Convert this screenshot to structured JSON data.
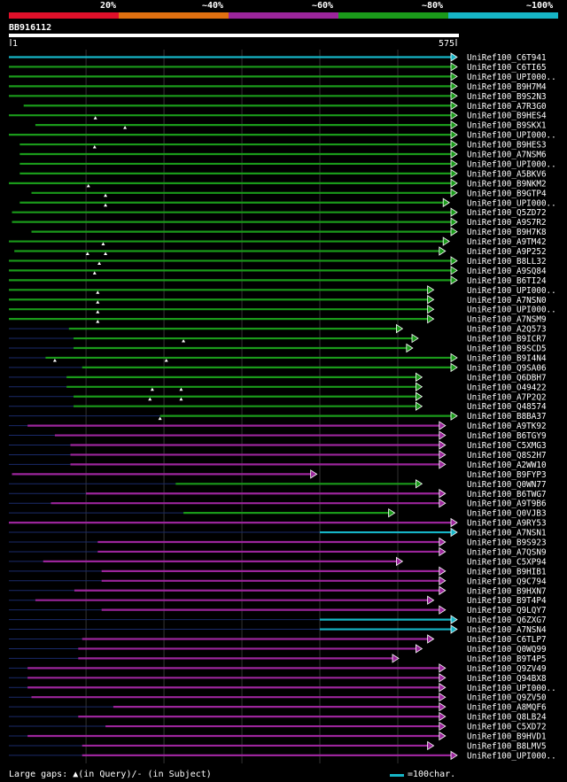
{
  "legend": {
    "colors": [
      "#e0102a",
      "#e07010",
      "#9b259b",
      "#1a9a1a",
      "#16b5c6"
    ],
    "labels": [
      "20%",
      "~40%",
      "~60%",
      "~80%",
      "~100%"
    ]
  },
  "chart_data": {
    "type": "alignment-overview",
    "query_id": "BB916112",
    "query_length": 575,
    "ruler_start": "1",
    "ruler_end": "575",
    "hits": [
      {
        "id": "UniRef100_C6T941",
        "start": 1,
        "end": 575,
        "color": "#16b5c6",
        "gaps": [],
        "prefix": 0
      },
      {
        "id": "UniRef100_C6TI65",
        "start": 1,
        "end": 575,
        "color": "#1a9a1a",
        "gaps": [],
        "prefix": 0
      },
      {
        "id": "UniRef100_UPI000..",
        "start": 1,
        "end": 575,
        "color": "#1a9a1a",
        "gaps": [],
        "prefix": 0
      },
      {
        "id": "UniRef100_B9H7M4",
        "start": 1,
        "end": 575,
        "color": "#1a9a1a",
        "gaps": [],
        "prefix": 0
      },
      {
        "id": "UniRef100_B9S2N3",
        "start": 1,
        "end": 575,
        "color": "#1a9a1a",
        "gaps": [],
        "prefix": 0
      },
      {
        "id": "UniRef100_A7R3G0",
        "start": 20,
        "end": 575,
        "color": "#1a9a1a",
        "gaps": [],
        "prefix": 0
      },
      {
        "id": "UniRef100_B9HES4",
        "start": 1,
        "end": 575,
        "color": "#1a9a1a",
        "gaps": [
          112
        ],
        "prefix": 0
      },
      {
        "id": "UniRef100_B9SKX1",
        "start": 35,
        "end": 575,
        "color": "#1a9a1a",
        "gaps": [
          150
        ],
        "prefix": 0
      },
      {
        "id": "UniRef100_UPI000..",
        "start": 1,
        "end": 575,
        "color": "#1a9a1a",
        "gaps": [],
        "prefix": 0
      },
      {
        "id": "UniRef100_B9HES3",
        "start": 15,
        "end": 575,
        "color": "#1a9a1a",
        "gaps": [
          111
        ],
        "prefix": 0
      },
      {
        "id": "UniRef100_A7NSM6",
        "start": 15,
        "end": 575,
        "color": "#1a9a1a",
        "gaps": [],
        "prefix": 0
      },
      {
        "id": "UniRef100_UPI000..",
        "start": 15,
        "end": 575,
        "color": "#1a9a1a",
        "gaps": [],
        "prefix": 0
      },
      {
        "id": "UniRef100_A5BKV6",
        "start": 15,
        "end": 575,
        "color": "#1a9a1a",
        "gaps": [],
        "prefix": 0
      },
      {
        "id": "UniRef100_B9NKM2",
        "start": 1,
        "end": 575,
        "color": "#1a9a1a",
        "gaps": [
          103
        ],
        "prefix": 0
      },
      {
        "id": "UniRef100_B9GTP4",
        "start": 30,
        "end": 575,
        "color": "#1a9a1a",
        "gaps": [
          125
        ],
        "prefix": 0
      },
      {
        "id": "UniRef100_UPI000..",
        "start": 15,
        "end": 565,
        "color": "#1a9a1a",
        "gaps": [
          125
        ],
        "prefix": 0
      },
      {
        "id": "UniRef100_Q5ZD72",
        "start": 5,
        "end": 575,
        "color": "#1a9a1a",
        "gaps": [],
        "prefix": 0
      },
      {
        "id": "UniRef100_A9S7R2",
        "start": 5,
        "end": 575,
        "color": "#1a9a1a",
        "gaps": [],
        "prefix": 0
      },
      {
        "id": "UniRef100_B9H7K8",
        "start": 30,
        "end": 575,
        "color": "#1a9a1a",
        "gaps": [],
        "prefix": 0
      },
      {
        "id": "UniRef100_A9TM42",
        "start": 1,
        "end": 565,
        "color": "#1a9a1a",
        "gaps": [
          122
        ],
        "prefix": 0
      },
      {
        "id": "UniRef100_A9P252",
        "start": 8,
        "end": 560,
        "color": "#1a9a1a",
        "gaps": [
          102,
          125
        ],
        "prefix": 0
      },
      {
        "id": "UniRef100_B8LL32",
        "start": 1,
        "end": 575,
        "color": "#1a9a1a",
        "gaps": [
          117
        ],
        "prefix": 0
      },
      {
        "id": "UniRef100_A9SQ84",
        "start": 1,
        "end": 575,
        "color": "#1a9a1a",
        "gaps": [
          111
        ],
        "prefix": 0
      },
      {
        "id": "UniRef100_B6TI24",
        "start": 1,
        "end": 575,
        "color": "#1a9a1a",
        "gaps": [],
        "prefix": 0
      },
      {
        "id": "UniRef100_UPI000..",
        "start": 1,
        "end": 545,
        "color": "#1a9a1a",
        "gaps": [
          115
        ],
        "prefix": 0
      },
      {
        "id": "UniRef100_A7NSN0",
        "start": 1,
        "end": 545,
        "color": "#1a9a1a",
        "gaps": [
          115
        ],
        "prefix": 0
      },
      {
        "id": "UniRef100_UPI000..",
        "start": 1,
        "end": 545,
        "color": "#1a9a1a",
        "gaps": [
          115
        ],
        "prefix": 0
      },
      {
        "id": "UniRef100_A7NSM9",
        "start": 1,
        "end": 545,
        "color": "#1a9a1a",
        "gaps": [
          115
        ],
        "prefix": 0
      },
      {
        "id": "UniRef100_A2Q573",
        "start": 78,
        "end": 505,
        "color": "#1a9a1a",
        "gaps": [],
        "prefix": 1
      },
      {
        "id": "UniRef100_B9ICR7",
        "start": 84,
        "end": 525,
        "color": "#1a9a1a",
        "gaps": [
          225
        ],
        "prefix": 1
      },
      {
        "id": "UniRef100_B9SCD5",
        "start": 84,
        "end": 518,
        "color": "#1a9a1a",
        "gaps": [],
        "prefix": 1
      },
      {
        "id": "UniRef100_B9I4N4",
        "start": 48,
        "end": 575,
        "color": "#1a9a1a",
        "gaps": [
          60,
          203
        ],
        "prefix": 1
      },
      {
        "id": "UniRef100_Q9SA06",
        "start": 95,
        "end": 575,
        "color": "#1a9a1a",
        "gaps": [],
        "prefix": 1
      },
      {
        "id": "UniRef100_Q6DBH7",
        "start": 75,
        "end": 530,
        "color": "#1a9a1a",
        "gaps": [],
        "prefix": 1
      },
      {
        "id": "UniRef100_O49422",
        "start": 75,
        "end": 530,
        "color": "#1a9a1a",
        "gaps": [
          185,
          222
        ],
        "prefix": 1
      },
      {
        "id": "UniRef100_A7P2Q2",
        "start": 84,
        "end": 530,
        "color": "#1a9a1a",
        "gaps": [
          182,
          222
        ],
        "prefix": 1
      },
      {
        "id": "UniRef100_Q48574",
        "start": 84,
        "end": 530,
        "color": "#1a9a1a",
        "gaps": [],
        "prefix": 1
      },
      {
        "id": "UniRef100_B8BA37",
        "start": 195,
        "end": 575,
        "color": "#1a9a1a",
        "gaps": [
          195
        ],
        "prefix": 1
      },
      {
        "id": "UniRef100_A9TK92",
        "start": 25,
        "end": 560,
        "color": "#9b259b",
        "gaps": [],
        "prefix": 1
      },
      {
        "id": "UniRef100_B6TGY9",
        "start": 60,
        "end": 560,
        "color": "#9b259b",
        "gaps": [],
        "prefix": 1
      },
      {
        "id": "UniRef100_C5XMG3",
        "start": 80,
        "end": 560,
        "color": "#9b259b",
        "gaps": [],
        "prefix": 1
      },
      {
        "id": "UniRef100_Q8S2H7",
        "start": 80,
        "end": 560,
        "color": "#9b259b",
        "gaps": [],
        "prefix": 1
      },
      {
        "id": "UniRef100_A2WW10",
        "start": 80,
        "end": 560,
        "color": "#9b259b",
        "gaps": [],
        "prefix": 1
      },
      {
        "id": "UniRef100_B9FYP3",
        "start": 5,
        "end": 395,
        "color": "#9b259b",
        "gaps": [],
        "prefix": 0
      },
      {
        "id": "UniRef100_Q0WN77",
        "start": 215,
        "end": 530,
        "color": "#1a9a1a",
        "gaps": [],
        "prefix": 1
      },
      {
        "id": "UniRef100_B6TWG7",
        "start": 100,
        "end": 560,
        "color": "#9b259b",
        "gaps": [],
        "prefix": 1
      },
      {
        "id": "UniRef100_A9T9B6",
        "start": 55,
        "end": 560,
        "color": "#9b259b",
        "gaps": [],
        "prefix": 1
      },
      {
        "id": "UniRef100_Q0VJB3",
        "start": 225,
        "end": 495,
        "color": "#1a9a1a",
        "gaps": [],
        "prefix": 1
      },
      {
        "id": "UniRef100_A9RY53",
        "start": 1,
        "end": 575,
        "color": "#9b259b",
        "gaps": [],
        "prefix": 0
      },
      {
        "id": "UniRef100_A7NSN1",
        "start": 400,
        "end": 575,
        "color": "#16b5c6",
        "gaps": [],
        "prefix": 1
      },
      {
        "id": "UniRef100_B9S923",
        "start": 115,
        "end": 560,
        "color": "#9b259b",
        "gaps": [],
        "prefix": 1
      },
      {
        "id": "UniRef100_A7QSN9",
        "start": 115,
        "end": 560,
        "color": "#9b259b",
        "gaps": [],
        "prefix": 1
      },
      {
        "id": "UniRef100_C5XP94",
        "start": 45,
        "end": 505,
        "color": "#9b259b",
        "gaps": [],
        "prefix": 1
      },
      {
        "id": "UniRef100_B9HIB1",
        "start": 120,
        "end": 560,
        "color": "#9b259b",
        "gaps": [],
        "prefix": 1
      },
      {
        "id": "UniRef100_Q9C794",
        "start": 120,
        "end": 560,
        "color": "#9b259b",
        "gaps": [],
        "prefix": 1
      },
      {
        "id": "UniRef100_B9HXN7",
        "start": 85,
        "end": 560,
        "color": "#9b259b",
        "gaps": [],
        "prefix": 1
      },
      {
        "id": "UniRef100_B9T4P4",
        "start": 35,
        "end": 545,
        "color": "#9b259b",
        "gaps": [],
        "prefix": 1
      },
      {
        "id": "UniRef100_Q9LQY7",
        "start": 120,
        "end": 560,
        "color": "#9b259b",
        "gaps": [],
        "prefix": 1
      },
      {
        "id": "UniRef100_Q6ZXG7",
        "start": 400,
        "end": 575,
        "color": "#16b5c6",
        "gaps": [],
        "prefix": 1
      },
      {
        "id": "UniRef100_A7NSN4",
        "start": 400,
        "end": 575,
        "color": "#16b5c6",
        "gaps": [],
        "prefix": 1
      },
      {
        "id": "UniRef100_C6TLP7",
        "start": 95,
        "end": 545,
        "color": "#9b259b",
        "gaps": [],
        "prefix": 1
      },
      {
        "id": "UniRef100_Q0WQ99",
        "start": 90,
        "end": 530,
        "color": "#9b259b",
        "gaps": [],
        "prefix": 1
      },
      {
        "id": "UniRef100_B9T4P5",
        "start": 90,
        "end": 500,
        "color": "#9b259b",
        "gaps": [],
        "prefix": 1
      },
      {
        "id": "UniRef100_Q9ZV49",
        "start": 25,
        "end": 560,
        "color": "#9b259b",
        "gaps": [],
        "prefix": 1
      },
      {
        "id": "UniRef100_Q94BX8",
        "start": 25,
        "end": 560,
        "color": "#9b259b",
        "gaps": [],
        "prefix": 1
      },
      {
        "id": "UniRef100_UPI000..",
        "start": 25,
        "end": 560,
        "color": "#9b259b",
        "gaps": [],
        "prefix": 1
      },
      {
        "id": "UniRef100_Q9ZV50",
        "start": 30,
        "end": 560,
        "color": "#9b259b",
        "gaps": [],
        "prefix": 1
      },
      {
        "id": "UniRef100_A8MQF6",
        "start": 135,
        "end": 560,
        "color": "#9b259b",
        "gaps": [],
        "prefix": 1
      },
      {
        "id": "UniRef100_Q8LB24",
        "start": 90,
        "end": 560,
        "color": "#9b259b",
        "gaps": [],
        "prefix": 1
      },
      {
        "id": "UniRef100_C5XD72",
        "start": 125,
        "end": 560,
        "color": "#9b259b",
        "gaps": [],
        "prefix": 1
      },
      {
        "id": "UniRef100_B9HVD1",
        "start": 25,
        "end": 560,
        "color": "#9b259b",
        "gaps": [],
        "prefix": 1
      },
      {
        "id": "UniRef100_B8LMV5",
        "start": 95,
        "end": 545,
        "color": "#9b259b",
        "gaps": [],
        "prefix": 1
      },
      {
        "id": "UniRef100_UPI000..",
        "start": 95,
        "end": 575,
        "color": "#9b259b",
        "gaps": [],
        "prefix": 1
      }
    ]
  },
  "footer": {
    "gaps_text": "Large gaps: ▲(in Query)/- (in Subject)",
    "scale_text": "=100char."
  }
}
